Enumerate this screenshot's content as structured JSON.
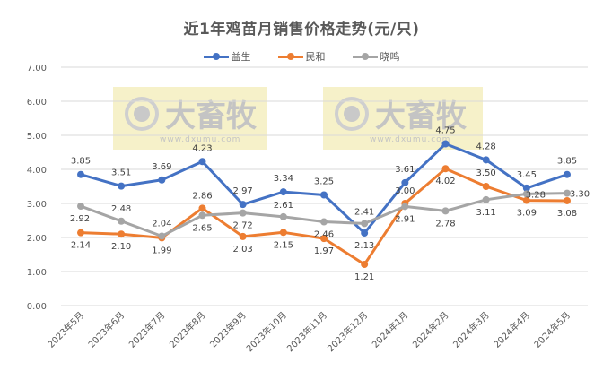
{
  "chart_data": {
    "type": "line",
    "title": "近1年鸡苗月销售价格走势(元/只)",
    "xlabel": "",
    "ylabel": "",
    "ylim": [
      0,
      7
    ],
    "yticks": [
      "0.00",
      "1.00",
      "2.00",
      "3.00",
      "4.00",
      "5.00",
      "6.00",
      "7.00"
    ],
    "grid": true,
    "legend_position": "top",
    "categories": [
      "2023年5月",
      "2023年6月",
      "2023年7月",
      "2023年8月",
      "2023年9月",
      "2023年10月",
      "2023年11月",
      "2023年12月",
      "2024年1月",
      "2024年2月",
      "2024年3月",
      "2024年4月",
      "2024年5月"
    ],
    "series": [
      {
        "name": "益生",
        "color": "#4472C4",
        "values": [
          3.85,
          3.51,
          3.69,
          4.23,
          2.97,
          3.34,
          3.25,
          2.13,
          3.61,
          4.75,
          4.28,
          3.45,
          3.85
        ]
      },
      {
        "name": "民和",
        "color": "#ED7D31",
        "values": [
          2.14,
          2.1,
          1.99,
          2.86,
          2.03,
          2.15,
          1.97,
          1.21,
          3.0,
          4.02,
          3.5,
          3.09,
          3.08
        ]
      },
      {
        "name": "晓鸣",
        "color": "#A5A5A5",
        "values": [
          2.92,
          2.48,
          2.04,
          2.65,
          2.72,
          2.61,
          2.46,
          2.41,
          2.91,
          2.78,
          3.11,
          3.28,
          3.3
        ]
      }
    ]
  },
  "watermark": {
    "brand": "大畜牧",
    "url": "www.dxumu.com"
  }
}
